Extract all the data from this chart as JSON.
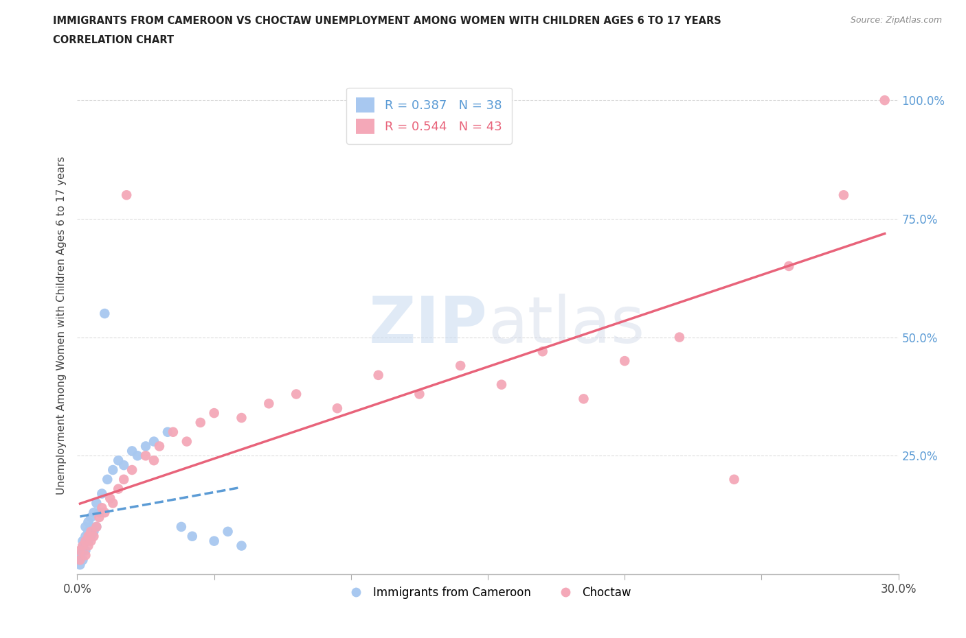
{
  "title_line1": "IMMIGRANTS FROM CAMEROON VS CHOCTAW UNEMPLOYMENT AMONG WOMEN WITH CHILDREN AGES 6 TO 17 YEARS",
  "title_line2": "CORRELATION CHART",
  "source_text": "Source: ZipAtlas.com",
  "ylabel": "Unemployment Among Women with Children Ages 6 to 17 years",
  "xlim": [
    0.0,
    0.3
  ],
  "ylim": [
    0.0,
    1.05
  ],
  "grid_color": "#cccccc",
  "background_color": "#ffffff",
  "watermark_zip": "ZIP",
  "watermark_atlas": "atlas",
  "cameroon_color": "#a8c8f0",
  "choctaw_color": "#f4a8b8",
  "cameroon_line_color": "#5b9bd5",
  "choctaw_line_color": "#e8637a",
  "right_tick_color": "#5b9bd5",
  "R_cameroon": 0.387,
  "N_cameroon": 38,
  "R_choctaw": 0.544,
  "N_choctaw": 43,
  "cam_x": [
    0.001,
    0.001,
    0.001,
    0.002,
    0.002,
    0.002,
    0.002,
    0.003,
    0.003,
    0.003,
    0.003,
    0.004,
    0.004,
    0.004,
    0.005,
    0.005,
    0.005,
    0.006,
    0.006,
    0.007,
    0.007,
    0.008,
    0.009,
    0.01,
    0.011,
    0.013,
    0.015,
    0.017,
    0.02,
    0.022,
    0.025,
    0.028,
    0.033,
    0.038,
    0.042,
    0.05,
    0.055,
    0.06
  ],
  "cam_y": [
    0.02,
    0.03,
    0.04,
    0.03,
    0.05,
    0.06,
    0.07,
    0.05,
    0.07,
    0.08,
    0.1,
    0.07,
    0.09,
    0.11,
    0.08,
    0.1,
    0.12,
    0.09,
    0.13,
    0.1,
    0.15,
    0.13,
    0.17,
    0.55,
    0.2,
    0.22,
    0.24,
    0.23,
    0.26,
    0.25,
    0.27,
    0.28,
    0.3,
    0.1,
    0.08,
    0.07,
    0.09,
    0.06
  ],
  "cho_x": [
    0.001,
    0.001,
    0.002,
    0.003,
    0.003,
    0.004,
    0.004,
    0.005,
    0.005,
    0.006,
    0.007,
    0.008,
    0.009,
    0.01,
    0.012,
    0.013,
    0.015,
    0.017,
    0.018,
    0.02,
    0.025,
    0.028,
    0.03,
    0.035,
    0.04,
    0.045,
    0.05,
    0.06,
    0.07,
    0.08,
    0.095,
    0.11,
    0.125,
    0.14,
    0.155,
    0.17,
    0.185,
    0.2,
    0.22,
    0.24,
    0.26,
    0.28,
    0.295
  ],
  "cho_y": [
    0.03,
    0.05,
    0.06,
    0.04,
    0.07,
    0.06,
    0.08,
    0.07,
    0.09,
    0.08,
    0.1,
    0.12,
    0.14,
    0.13,
    0.16,
    0.15,
    0.18,
    0.2,
    0.8,
    0.22,
    0.25,
    0.24,
    0.27,
    0.3,
    0.28,
    0.32,
    0.34,
    0.33,
    0.36,
    0.38,
    0.35,
    0.42,
    0.38,
    0.44,
    0.4,
    0.47,
    0.37,
    0.45,
    0.5,
    0.2,
    0.65,
    0.8,
    1.0
  ]
}
